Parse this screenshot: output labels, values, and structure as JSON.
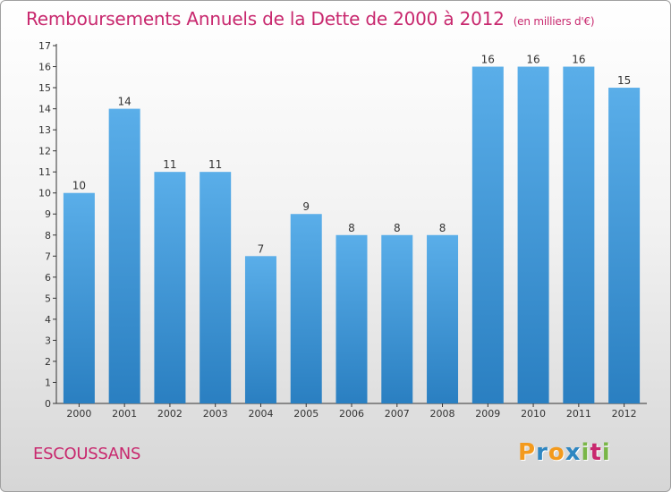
{
  "chart_data": {
    "type": "bar",
    "title": "Remboursements Annuels de la Dette de 2000 à 2012",
    "subtitle": "(en milliers d'€)",
    "categories": [
      "2000",
      "2001",
      "2002",
      "2003",
      "2004",
      "2005",
      "2006",
      "2007",
      "2008",
      "2009",
      "2010",
      "2011",
      "2012"
    ],
    "values": [
      10,
      14,
      11,
      11,
      7,
      9,
      8,
      8,
      8,
      16,
      16,
      16,
      15
    ],
    "ylim": [
      0,
      17
    ],
    "yticks": [
      0,
      1,
      2,
      3,
      4,
      5,
      6,
      7,
      8,
      9,
      10,
      11,
      12,
      13,
      14,
      15,
      16,
      17
    ],
    "xlabel": "",
    "ylabel": "",
    "grid": false,
    "bar_color_top": "#5aaee9",
    "bar_color_bottom": "#2a7fc1"
  },
  "footer": {
    "place": "ESCOUSSANS",
    "logo_letters": [
      "P",
      "r",
      "o",
      "x",
      "i",
      "t",
      "i"
    ],
    "logo_colors": [
      "#f39a1d",
      "#2e86c1",
      "#f39a1d",
      "#2e86c1",
      "#7ab648",
      "#c8286e",
      "#7ab648"
    ]
  }
}
